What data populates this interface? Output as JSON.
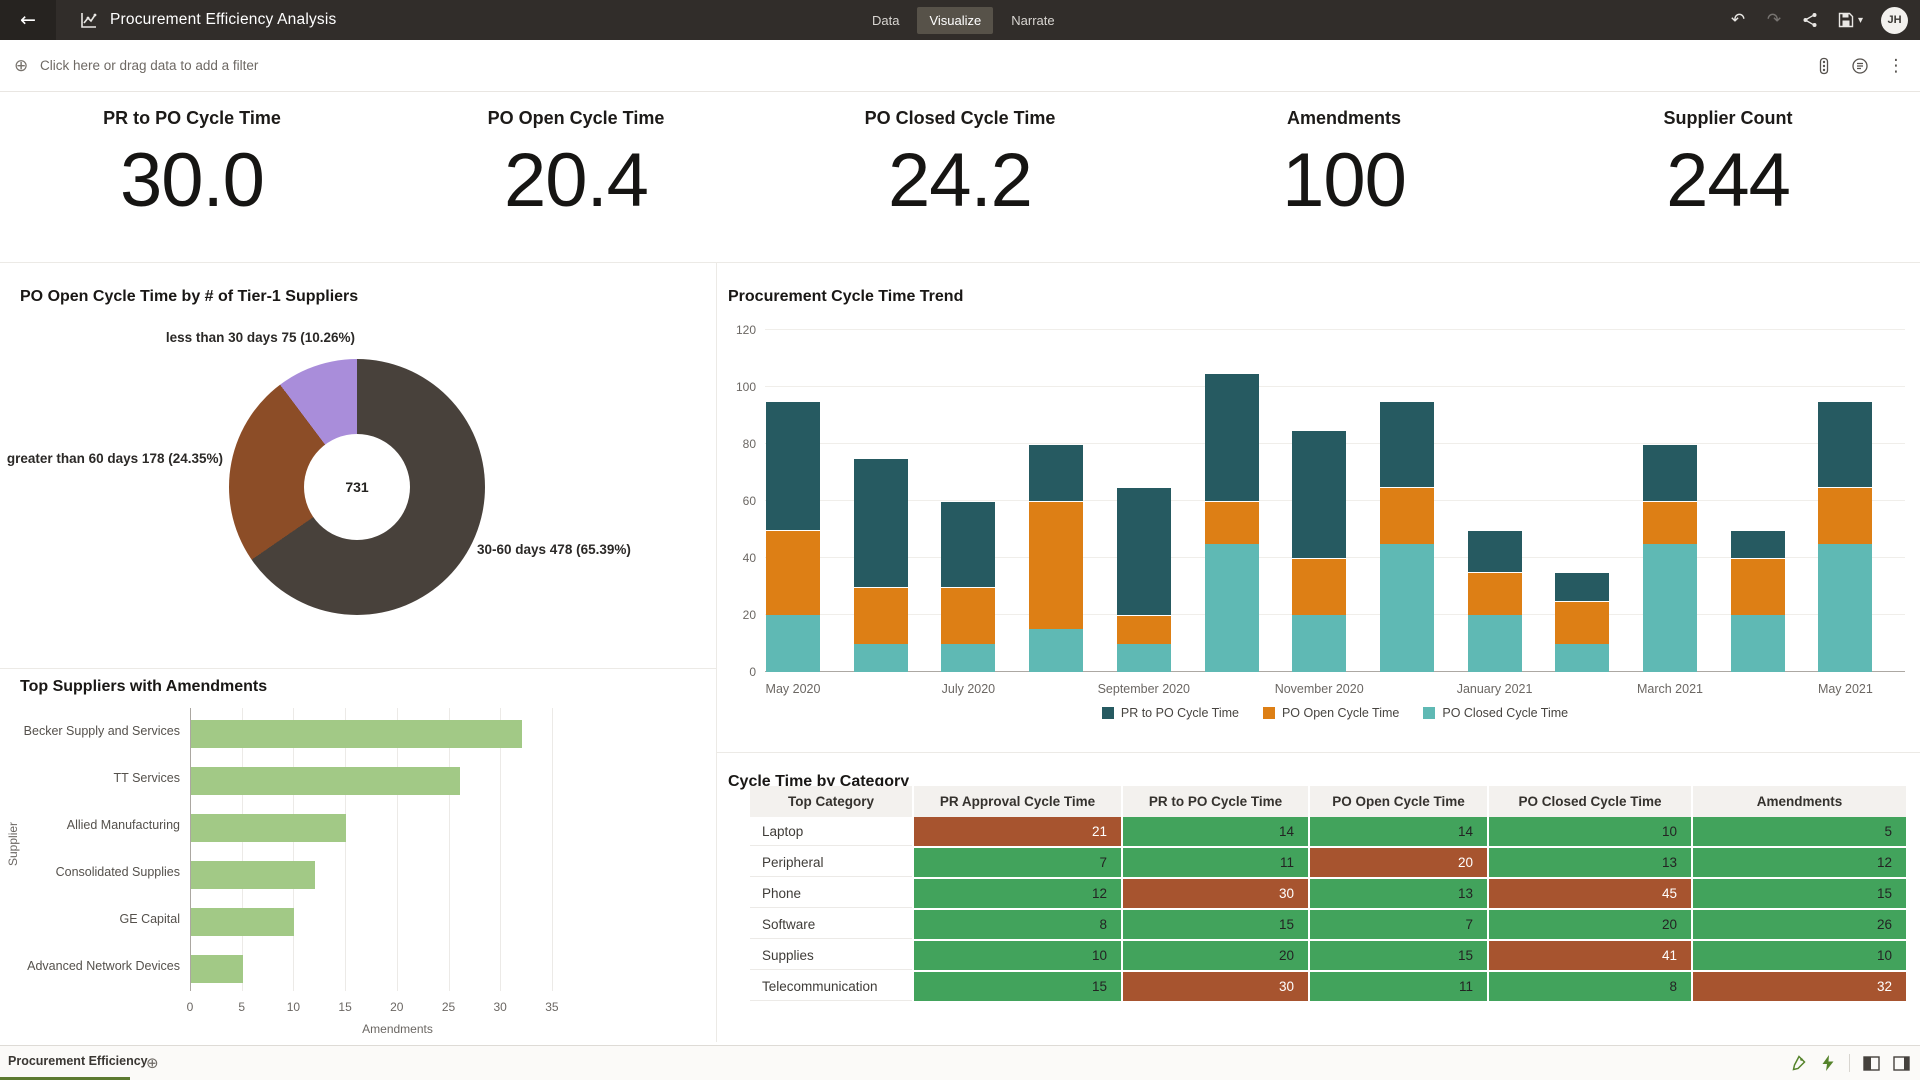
{
  "header": {
    "title": "Procurement Efficiency Analysis",
    "tabs": [
      {
        "label": "Data",
        "active": false
      },
      {
        "label": "Visualize",
        "active": true
      },
      {
        "label": "Narrate",
        "active": false
      }
    ],
    "avatar_initials": "JH"
  },
  "filter_bar": {
    "prompt": "Click here or drag data to add a filter"
  },
  "kpis": [
    {
      "label": "PR to PO Cycle Time",
      "value": "30.0"
    },
    {
      "label": "PO Open Cycle Time",
      "value": "20.4"
    },
    {
      "label": "PO Closed Cycle Time",
      "value": "24.2"
    },
    {
      "label": "Amendments",
      "value": "100"
    },
    {
      "label": "Supplier Count",
      "value": "244"
    }
  ],
  "bottom_bar": {
    "canvas_tab": "Procurement Efficiency"
  },
  "colors": {
    "header_bg": "#312d2a",
    "active_tab_bg": "#575249",
    "pr_to_po": "#265a61",
    "po_open": "#dd7f15",
    "po_closed": "#5fb9b4",
    "donut_30_60": "#48413b",
    "donut_gt60": "#8c4d27",
    "donut_lt30": "#a98dda",
    "supplier_bar": "#a2c986",
    "table_good": "#42a35c",
    "table_bad": "#a7542f",
    "canvas_tab_underline": "#5c7a30"
  },
  "chart_data": [
    {
      "id": "tier1-donut",
      "type": "pie",
      "title": "PO Open Cycle Time by # of Tier-1 Suppliers",
      "center_total": "731",
      "slices": [
        {
          "label": "30-60 days",
          "value": 478,
          "pct": 65.39,
          "display": "30-60 days 478 (65.39%)",
          "color": "#48413b"
        },
        {
          "label": "greater than 60 days",
          "value": 178,
          "pct": 24.35,
          "display": "greater than 60 days 178 (24.35%)",
          "color": "#8c4d27"
        },
        {
          "label": "less than 30 days",
          "value": 75,
          "pct": 10.26,
          "display": "less than 30 days 75 (10.26%)",
          "color": "#a98dda"
        }
      ]
    },
    {
      "id": "cycle-time-trend",
      "type": "bar",
      "stacked": true,
      "title": "Procurement Cycle Time Trend",
      "categories": [
        "May 2020",
        "June 2020",
        "July 2020",
        "August 2020",
        "September 2020",
        "October 2020",
        "November 2020",
        "December 2020",
        "January 2021",
        "February 2021",
        "March 2021",
        "April 2021",
        "May 2021"
      ],
      "x_tick_labels_shown": [
        "May 2020",
        "July 2020",
        "September 2020",
        "November 2020",
        "January 2021",
        "March 2021",
        "May 2021"
      ],
      "series": [
        {
          "name": "PR to PO Cycle Time",
          "color": "#265a61",
          "values": [
            45,
            45,
            30,
            20,
            45,
            45,
            45,
            30,
            15,
            10,
            20,
            10,
            30
          ]
        },
        {
          "name": "PO Open Cycle Time",
          "color": "#dd7f15",
          "values": [
            30,
            20,
            20,
            45,
            10,
            15,
            20,
            20,
            15,
            15,
            15,
            20,
            20
          ]
        },
        {
          "name": "PO Closed Cycle Time",
          "color": "#5fb9b4",
          "values": [
            20,
            10,
            10,
            15,
            10,
            45,
            20,
            45,
            20,
            10,
            45,
            20,
            45
          ]
        }
      ],
      "stack_order_bottom_to_top": [
        "PO Closed Cycle Time",
        "PO Open Cycle Time",
        "PR to PO Cycle Time"
      ],
      "totals": [
        95,
        75,
        60,
        80,
        65,
        105,
        85,
        95,
        50,
        35,
        80,
        50,
        95
      ],
      "ylim": [
        0,
        120
      ],
      "yticks": [
        0,
        20,
        40,
        60,
        80,
        100,
        120
      ],
      "legend_position": "bottom"
    },
    {
      "id": "top-suppliers",
      "type": "bar",
      "orientation": "horizontal",
      "title": "Top Suppliers with Amendments",
      "xlabel": "Amendments",
      "ylabel": "Supplier",
      "categories": [
        "Becker Supply and Services",
        "TT Services",
        "Allied Manufacturing",
        "Consolidated Supplies",
        "GE Capital",
        "Advanced Network Devices"
      ],
      "values": [
        32,
        26,
        15,
        12,
        10,
        5
      ],
      "bar_color": "#a2c986",
      "xlim": [
        0,
        35
      ],
      "xticks": [
        0,
        5,
        10,
        15,
        20,
        25,
        30,
        35
      ]
    },
    {
      "id": "cycle-time-by-category",
      "type": "table",
      "title": "Cycle Time by Category",
      "columns": [
        "Top Category",
        "PR Approval Cycle Time",
        "PR to PO Cycle Time",
        "PO Open Cycle Time",
        "PO Closed Cycle Time",
        "Amendments"
      ],
      "rows": [
        {
          "category": "Laptop",
          "values": [
            21,
            14,
            14,
            10,
            5
          ],
          "flags": [
            "bad",
            "good",
            "good",
            "good",
            "good"
          ]
        },
        {
          "category": "Peripheral",
          "values": [
            7,
            11,
            20,
            13,
            12
          ],
          "flags": [
            "good",
            "good",
            "bad",
            "good",
            "good"
          ]
        },
        {
          "category": "Phone",
          "values": [
            12,
            30,
            13,
            45,
            15
          ],
          "flags": [
            "good",
            "bad",
            "good",
            "bad",
            "good"
          ]
        },
        {
          "category": "Software",
          "values": [
            8,
            15,
            7,
            20,
            26
          ],
          "flags": [
            "good",
            "good",
            "good",
            "good",
            "good"
          ]
        },
        {
          "category": "Supplies",
          "values": [
            10,
            20,
            15,
            41,
            10
          ],
          "flags": [
            "good",
            "good",
            "good",
            "bad",
            "good"
          ]
        },
        {
          "category": "Telecommunication",
          "values": [
            15,
            30,
            11,
            8,
            32
          ],
          "flags": [
            "good",
            "bad",
            "good",
            "good",
            "bad"
          ]
        }
      ],
      "good_color": "#42a35c",
      "bad_color": "#a7542f"
    }
  ]
}
